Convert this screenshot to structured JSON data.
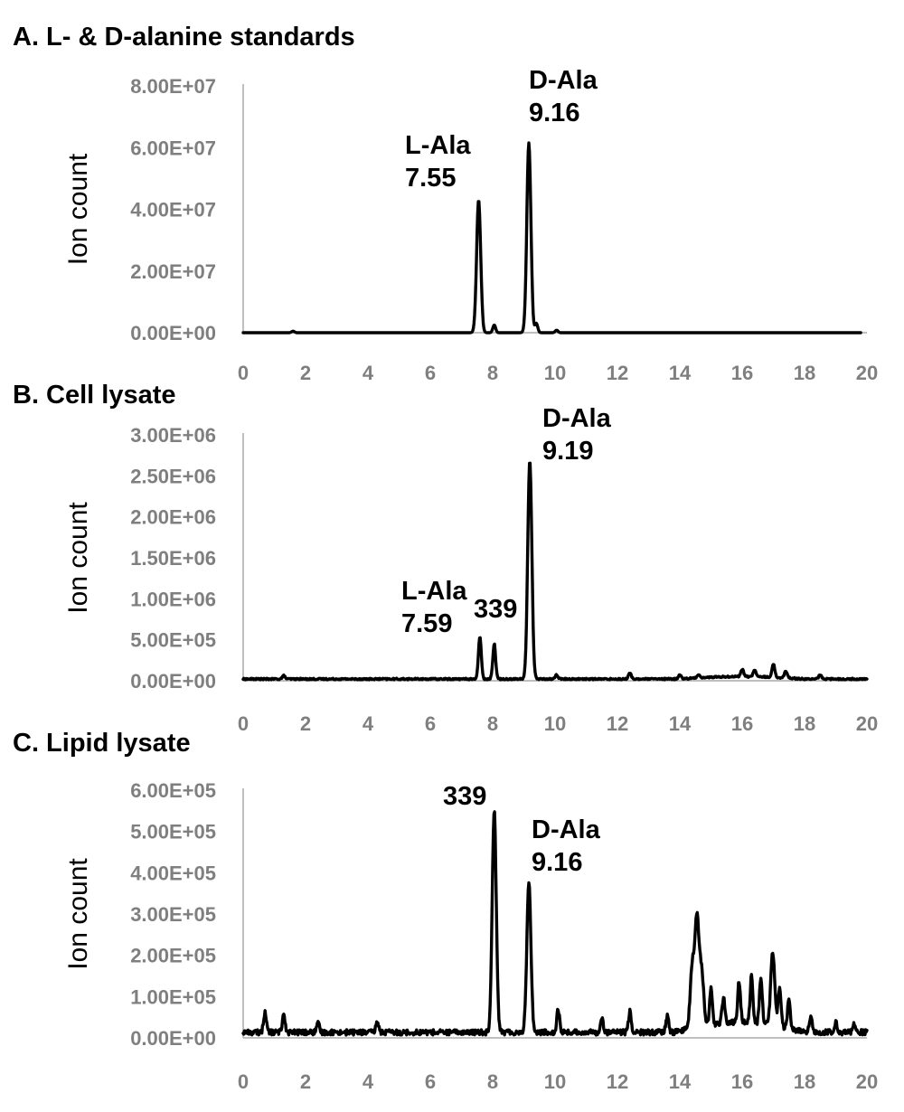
{
  "chart_data": [
    {
      "type": "line",
      "title": "A. L- & D-alanine standards",
      "ylabel": "Ion count",
      "xlabel": "",
      "xlim": [
        0,
        20
      ],
      "ylim": [
        0,
        80000000
      ],
      "x_ticks": [
        "0",
        "2",
        "4",
        "6",
        "8",
        "10",
        "12",
        "14",
        "16",
        "18",
        "20"
      ],
      "y_ticks": [
        "0.00E+00",
        "2.00E+07",
        "4.00E+07",
        "6.00E+07",
        "8.00E+07"
      ],
      "grid": false,
      "legend": "none",
      "peaks": [
        {
          "x": 1.6,
          "y": 500000
        },
        {
          "x": 7.55,
          "y": 43000000
        },
        {
          "x": 8.05,
          "y": 2500000
        },
        {
          "x": 9.16,
          "y": 61500000
        },
        {
          "x": 9.4,
          "y": 3000000
        },
        {
          "x": 10.05,
          "y": 800000
        }
      ],
      "annotations": [
        {
          "lines": [
            "L-Ala",
            "7.55"
          ],
          "x": 7.55
        },
        {
          "lines": [
            "D-Ala",
            "9.16"
          ],
          "x": 9.16
        }
      ]
    },
    {
      "type": "line",
      "title": "B. Cell lysate",
      "ylabel": "Ion count",
      "xlabel": "",
      "xlim": [
        0,
        20
      ],
      "ylim": [
        0,
        3000000
      ],
      "x_ticks": [
        "0",
        "2",
        "4",
        "6",
        "8",
        "10",
        "12",
        "14",
        "16",
        "18",
        "20"
      ],
      "y_ticks": [
        "0.00E+00",
        "5.00E+05",
        "1.00E+06",
        "1.50E+06",
        "2.00E+06",
        "2.50E+06",
        "3.00E+06"
      ],
      "grid": false,
      "legend": "none",
      "peaks": [
        {
          "x": 1.3,
          "y": 40000
        },
        {
          "x": 7.59,
          "y": 520000
        },
        {
          "x": 8.05,
          "y": 430000
        },
        {
          "x": 9.19,
          "y": 2670000
        },
        {
          "x": 10.05,
          "y": 50000
        },
        {
          "x": 12.4,
          "y": 70000
        },
        {
          "x": 14.0,
          "y": 50000
        },
        {
          "x": 14.6,
          "y": 40000
        },
        {
          "x": 16.0,
          "y": 90000
        },
        {
          "x": 16.4,
          "y": 80000
        },
        {
          "x": 17.0,
          "y": 160000
        },
        {
          "x": 17.4,
          "y": 80000
        },
        {
          "x": 18.5,
          "y": 50000
        }
      ],
      "annotations": [
        {
          "lines": [
            "L-Ala",
            "7.59"
          ],
          "x": 7.59
        },
        {
          "lines": [
            "339"
          ],
          "x": 8.05
        },
        {
          "lines": [
            "D-Ala",
            "9.19"
          ],
          "x": 9.19
        }
      ]
    },
    {
      "type": "line",
      "title": "C. Lipid lysate",
      "ylabel": "Ion count",
      "xlabel": "",
      "xlim": [
        0,
        20
      ],
      "ylim": [
        0,
        600000
      ],
      "x_ticks": [
        "0",
        "2",
        "4",
        "6",
        "8",
        "10",
        "12",
        "14",
        "16",
        "18",
        "20"
      ],
      "y_ticks": [
        "0.00E+00",
        "1.00E+05",
        "2.00E+05",
        "3.00E+05",
        "4.00E+05",
        "5.00E+05",
        "6.00E+05"
      ],
      "grid": false,
      "legend": "none",
      "peaks": [
        {
          "x": 0.7,
          "y": 50000
        },
        {
          "x": 1.3,
          "y": 45000
        },
        {
          "x": 2.4,
          "y": 20000
        },
        {
          "x": 4.3,
          "y": 25000
        },
        {
          "x": 8.05,
          "y": 540000
        },
        {
          "x": 9.16,
          "y": 365000
        },
        {
          "x": 10.1,
          "y": 55000
        },
        {
          "x": 11.5,
          "y": 35000
        },
        {
          "x": 12.4,
          "y": 50000
        },
        {
          "x": 13.6,
          "y": 40000
        },
        {
          "x": 14.4,
          "y": 145000
        },
        {
          "x": 14.55,
          "y": 260000
        },
        {
          "x": 14.7,
          "y": 130000
        },
        {
          "x": 15.0,
          "y": 85000
        },
        {
          "x": 15.4,
          "y": 60000
        },
        {
          "x": 15.9,
          "y": 100000
        },
        {
          "x": 16.3,
          "y": 115000
        },
        {
          "x": 16.6,
          "y": 110000
        },
        {
          "x": 16.98,
          "y": 175000
        },
        {
          "x": 17.2,
          "y": 95000
        },
        {
          "x": 17.5,
          "y": 70000
        },
        {
          "x": 18.2,
          "y": 35000
        },
        {
          "x": 19.0,
          "y": 25000
        },
        {
          "x": 19.6,
          "y": 20000
        }
      ],
      "annotations": [
        {
          "lines": [
            "339"
          ],
          "x": 8.05
        },
        {
          "lines": [
            "D-Ala",
            "9.16"
          ],
          "x": 9.16
        }
      ]
    }
  ]
}
